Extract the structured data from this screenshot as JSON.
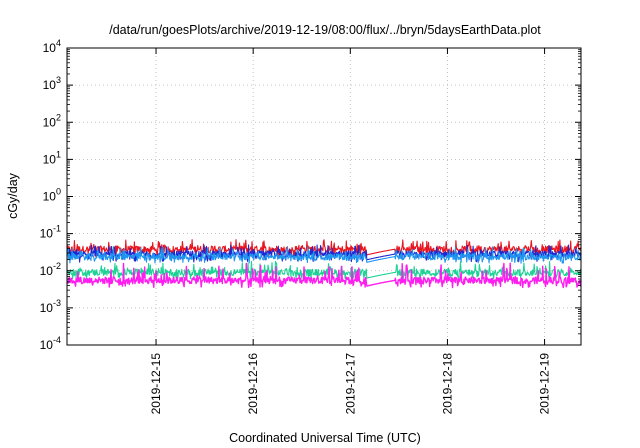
{
  "chart_data": {
    "type": "line",
    "title": "/data/run/goesPlots/archive/2019-12-19/08:00/flux/../bryn/5daysEarthData.plot",
    "xlabel": "Coordinated Universal Time (UTC)",
    "ylabel": "cGy/day",
    "yscale": "log",
    "ylim": [
      0.0001,
      10000
    ],
    "y_ticks": [
      {
        "value": 0.0001,
        "base": "10",
        "exp": "-4"
      },
      {
        "value": 0.001,
        "base": "10",
        "exp": "-3"
      },
      {
        "value": 0.01,
        "base": "10",
        "exp": "-2"
      },
      {
        "value": 0.1,
        "base": "10",
        "exp": "-1"
      },
      {
        "value": 1,
        "base": "10",
        "exp": "0"
      },
      {
        "value": 10,
        "base": "10",
        "exp": "1"
      },
      {
        "value": 100,
        "base": "10",
        "exp": "2"
      },
      {
        "value": 1000,
        "base": "10",
        "exp": "3"
      },
      {
        "value": 10000,
        "base": "10",
        "exp": "4"
      }
    ],
    "xlim": [
      "2019-12-14T02:00",
      "2019-12-19T09:00"
    ],
    "x_ticks": [
      {
        "value": "2019-12-15T00:00",
        "label": "2019-12-15"
      },
      {
        "value": "2019-12-16T00:00",
        "label": "2019-12-16"
      },
      {
        "value": "2019-12-17T00:00",
        "label": "2019-12-17"
      },
      {
        "value": "2019-12-18T00:00",
        "label": "2019-12-18"
      },
      {
        "value": "2019-12-19T00:00",
        "label": "2019-12-19"
      }
    ],
    "grid": true,
    "data_gap": [
      "2019-12-17T04:00",
      "2019-12-17T11:00"
    ],
    "series": [
      {
        "color": "#e8141e",
        "approx_level": 0.038,
        "spike_max": 0.07,
        "spike_min": 0.022
      },
      {
        "color": "#1e28d2",
        "approx_level": 0.028,
        "spike_max": 0.05,
        "spike_min": 0.017
      },
      {
        "color": "#1e96f0",
        "approx_level": 0.024,
        "spike_max": 0.045,
        "spike_min": 0.016
      },
      {
        "color": "#1ed296",
        "approx_level": 0.009,
        "spike_max": 0.018,
        "spike_min": 0.006
      },
      {
        "color": "#ff1ef0",
        "approx_level": 0.0055,
        "spike_max": 0.016,
        "spike_min": 0.0035
      }
    ]
  }
}
